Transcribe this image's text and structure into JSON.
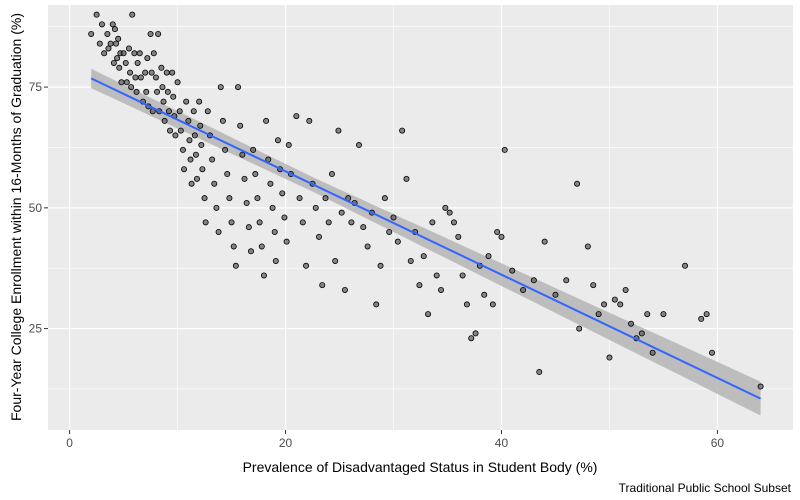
{
  "chart_data": {
    "type": "scatter",
    "xlabel": "Prevalence of Disadvantaged Status in Student Body (%)",
    "ylabel": "Four-Year College Enrollment within 16-Months of Graduation (%)",
    "caption": "Traditional Public School Subset",
    "xlim": [
      -2,
      67
    ],
    "ylim": [
      4,
      92
    ],
    "x_ticks": [
      0,
      20,
      40,
      60
    ],
    "y_ticks": [
      25,
      50,
      75
    ],
    "grid": true,
    "colors": {
      "panel": "#ebebeb",
      "grid": "#ffffff",
      "point_fill": "#595959",
      "point_stroke": "#000000",
      "trend_line": "#3366ff",
      "confidence_band": "#b5b5b5"
    },
    "trend": {
      "x": [
        2,
        64
      ],
      "y": [
        76.8,
        10.5
      ],
      "band_halfwidth": [
        2.0,
        1.5,
        2.5,
        3.5
      ]
    },
    "points": [
      [
        2.0,
        86
      ],
      [
        2.5,
        90
      ],
      [
        2.8,
        84
      ],
      [
        3.0,
        88
      ],
      [
        3.2,
        82
      ],
      [
        3.5,
        86
      ],
      [
        3.6,
        83
      ],
      [
        3.8,
        84
      ],
      [
        4.0,
        88
      ],
      [
        4.1,
        80
      ],
      [
        4.2,
        87
      ],
      [
        4.3,
        84
      ],
      [
        4.4,
        81
      ],
      [
        4.5,
        85
      ],
      [
        4.6,
        79
      ],
      [
        4.7,
        82
      ],
      [
        4.8,
        76
      ],
      [
        5.0,
        82
      ],
      [
        5.2,
        80
      ],
      [
        5.3,
        76
      ],
      [
        5.5,
        83
      ],
      [
        5.6,
        78
      ],
      [
        5.7,
        75
      ],
      [
        5.8,
        90
      ],
      [
        6.0,
        82
      ],
      [
        6.1,
        77
      ],
      [
        6.2,
        74
      ],
      [
        6.3,
        80
      ],
      [
        6.5,
        82
      ],
      [
        6.6,
        77
      ],
      [
        6.8,
        72
      ],
      [
        7.0,
        78
      ],
      [
        7.1,
        74
      ],
      [
        7.2,
        81
      ],
      [
        7.3,
        71
      ],
      [
        7.5,
        86
      ],
      [
        7.6,
        78
      ],
      [
        7.7,
        70
      ],
      [
        7.8,
        82
      ],
      [
        8.0,
        77
      ],
      [
        8.1,
        74
      ],
      [
        8.2,
        86
      ],
      [
        8.3,
        70
      ],
      [
        8.5,
        79
      ],
      [
        8.6,
        75
      ],
      [
        8.7,
        72
      ],
      [
        8.8,
        68
      ],
      [
        9.0,
        78
      ],
      [
        9.1,
        74
      ],
      [
        9.2,
        70
      ],
      [
        9.3,
        66
      ],
      [
        9.5,
        78
      ],
      [
        9.6,
        73
      ],
      [
        9.7,
        69
      ],
      [
        9.8,
        65
      ],
      [
        10.0,
        76
      ],
      [
        10.2,
        70
      ],
      [
        10.3,
        66
      ],
      [
        10.5,
        62
      ],
      [
        10.6,
        58
      ],
      [
        10.8,
        72
      ],
      [
        11.0,
        68
      ],
      [
        11.1,
        64
      ],
      [
        11.2,
        60
      ],
      [
        11.3,
        55
      ],
      [
        11.5,
        70
      ],
      [
        11.6,
        65
      ],
      [
        11.7,
        61
      ],
      [
        11.8,
        56
      ],
      [
        12.0,
        72
      ],
      [
        12.1,
        67
      ],
      [
        12.2,
        63
      ],
      [
        12.3,
        58
      ],
      [
        12.5,
        52
      ],
      [
        12.6,
        47
      ],
      [
        12.8,
        70
      ],
      [
        13.0,
        65
      ],
      [
        13.2,
        60
      ],
      [
        13.4,
        55
      ],
      [
        13.6,
        50
      ],
      [
        13.8,
        45
      ],
      [
        14.0,
        75
      ],
      [
        14.2,
        68
      ],
      [
        14.4,
        62
      ],
      [
        14.6,
        57
      ],
      [
        14.8,
        52
      ],
      [
        15.0,
        47
      ],
      [
        15.2,
        42
      ],
      [
        15.4,
        38
      ],
      [
        15.6,
        75
      ],
      [
        15.8,
        67
      ],
      [
        16.0,
        61
      ],
      [
        16.2,
        56
      ],
      [
        16.4,
        51
      ],
      [
        16.6,
        46
      ],
      [
        16.8,
        41
      ],
      [
        17.0,
        62
      ],
      [
        17.2,
        57
      ],
      [
        17.4,
        52
      ],
      [
        17.6,
        47
      ],
      [
        17.8,
        42
      ],
      [
        18.0,
        36
      ],
      [
        18.2,
        68
      ],
      [
        18.4,
        60
      ],
      [
        18.6,
        55
      ],
      [
        18.8,
        50
      ],
      [
        19.0,
        45
      ],
      [
        19.1,
        39
      ],
      [
        19.3,
        64
      ],
      [
        19.5,
        58
      ],
      [
        19.7,
        53
      ],
      [
        19.9,
        48
      ],
      [
        20.1,
        43
      ],
      [
        20.3,
        63
      ],
      [
        20.5,
        57
      ],
      [
        21.0,
        69
      ],
      [
        21.3,
        52
      ],
      [
        21.6,
        47
      ],
      [
        21.9,
        38
      ],
      [
        22.2,
        68
      ],
      [
        22.5,
        55
      ],
      [
        22.8,
        50
      ],
      [
        23.1,
        44
      ],
      [
        23.4,
        34
      ],
      [
        23.7,
        52
      ],
      [
        24.0,
        47
      ],
      [
        24.3,
        57
      ],
      [
        24.6,
        39
      ],
      [
        24.9,
        66
      ],
      [
        25.2,
        49
      ],
      [
        25.5,
        33
      ],
      [
        25.8,
        52
      ],
      [
        26.1,
        47
      ],
      [
        26.4,
        51
      ],
      [
        26.8,
        63
      ],
      [
        27.2,
        46
      ],
      [
        27.6,
        42
      ],
      [
        28.0,
        49
      ],
      [
        28.4,
        30
      ],
      [
        28.8,
        38
      ],
      [
        29.2,
        52
      ],
      [
        29.6,
        45
      ],
      [
        30.0,
        48
      ],
      [
        30.4,
        43
      ],
      [
        30.8,
        66
      ],
      [
        31.2,
        56
      ],
      [
        31.6,
        39
      ],
      [
        32.0,
        45
      ],
      [
        32.4,
        34
      ],
      [
        32.8,
        40
      ],
      [
        33.2,
        28
      ],
      [
        33.6,
        47
      ],
      [
        34.0,
        36
      ],
      [
        34.4,
        33
      ],
      [
        34.8,
        50
      ],
      [
        35.2,
        49
      ],
      [
        35.6,
        47
      ],
      [
        36.0,
        44
      ],
      [
        36.4,
        36
      ],
      [
        36.8,
        30
      ],
      [
        37.2,
        23
      ],
      [
        37.6,
        24
      ],
      [
        38.0,
        38
      ],
      [
        38.4,
        32
      ],
      [
        38.8,
        40
      ],
      [
        39.2,
        30
      ],
      [
        39.6,
        45
      ],
      [
        40.0,
        44
      ],
      [
        40.3,
        62
      ],
      [
        41.0,
        37
      ],
      [
        42.0,
        33
      ],
      [
        43.0,
        35
      ],
      [
        43.5,
        16
      ],
      [
        44.0,
        43
      ],
      [
        45.0,
        32
      ],
      [
        46.0,
        35
      ],
      [
        47.0,
        55
      ],
      [
        47.2,
        25
      ],
      [
        48.0,
        42
      ],
      [
        48.5,
        34
      ],
      [
        49.0,
        28
      ],
      [
        49.5,
        30
      ],
      [
        50.0,
        19
      ],
      [
        50.5,
        31
      ],
      [
        51.0,
        30
      ],
      [
        51.5,
        33
      ],
      [
        52.0,
        26
      ],
      [
        52.5,
        23
      ],
      [
        53.0,
        24
      ],
      [
        53.5,
        28
      ],
      [
        54.0,
        20
      ],
      [
        55.0,
        28
      ],
      [
        57.0,
        38
      ],
      [
        58.5,
        27
      ],
      [
        59.0,
        28
      ],
      [
        59.5,
        20
      ],
      [
        64.0,
        13
      ]
    ]
  }
}
